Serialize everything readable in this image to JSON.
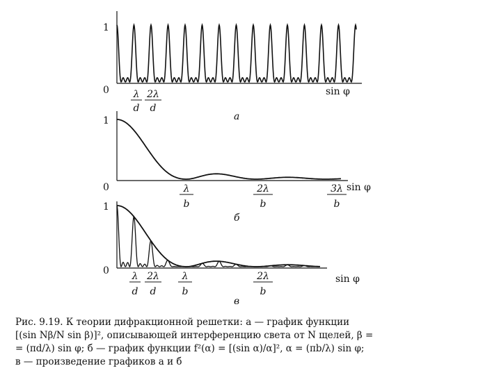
{
  "figure": {
    "panel_a": {
      "y_tick_top": "1",
      "origin": "0",
      "x_axis_label": "sin φ",
      "tick_labels": [
        {
          "num": "λ",
          "den": "d"
        },
        {
          "num": "2λ",
          "den": "d"
        }
      ],
      "panel_label": "а"
    },
    "panel_b": {
      "y_tick_top": "1",
      "origin": "0",
      "x_axis_label": "sin φ",
      "tick_labels": [
        {
          "num": "λ",
          "den": "b"
        },
        {
          "num": "2λ",
          "den": "b"
        },
        {
          "num": "3λ",
          "den": "b"
        }
      ],
      "panel_label": "б"
    },
    "panel_c": {
      "y_tick_top": "1",
      "origin": "0",
      "x_axis_label": "sin φ",
      "tick_labels": [
        {
          "num": "λ",
          "den": "d"
        },
        {
          "num": "2λ",
          "den": "d"
        },
        {
          "num": "λ",
          "den": "b"
        },
        {
          "num": "2λ",
          "den": "b"
        }
      ],
      "panel_label": "в"
    }
  },
  "chart_data": [
    {
      "type": "line",
      "panel": "а",
      "description_function": "[(sin Nβ/N sin β)]^2",
      "xlabel": "sin φ",
      "ylim": [
        0,
        1
      ],
      "principal_maxima_x": [
        0,
        1,
        2,
        3,
        4,
        5,
        6,
        7,
        8,
        9,
        10,
        11,
        12,
        13
      ],
      "x_unit": "λ/d",
      "peak_value": 1
    },
    {
      "type": "line",
      "panel": "б",
      "description_function": "f^2(α) = [(sin α)/α]^2",
      "xlabel": "sin φ",
      "ylim": [
        0,
        1
      ],
      "x_unit": "λ/b",
      "zeros_x": [
        1,
        2,
        3
      ],
      "value_at_0": 1
    },
    {
      "type": "line",
      "panel": "в",
      "description_function": "product of а and б",
      "xlabel": "sin φ",
      "ylim": [
        0,
        1
      ],
      "x_ticks_labeled": [
        "λ/d",
        "2λ/d",
        "λ/b",
        "2λ/b"
      ]
    }
  ],
  "caption": {
    "lines": [
      "Рис. 9.19. К теории дифракционной решетки: а — график функции",
      "[(sin Nβ/N sin β)]², описывающей интерференцию света от N щелей, β =",
      "= (πd/λ) sin φ; б — график функции f²(α) = [(sin α)/α]², α = (πb/λ) sin φ;",
      "в — произведение графиков а и б"
    ]
  }
}
